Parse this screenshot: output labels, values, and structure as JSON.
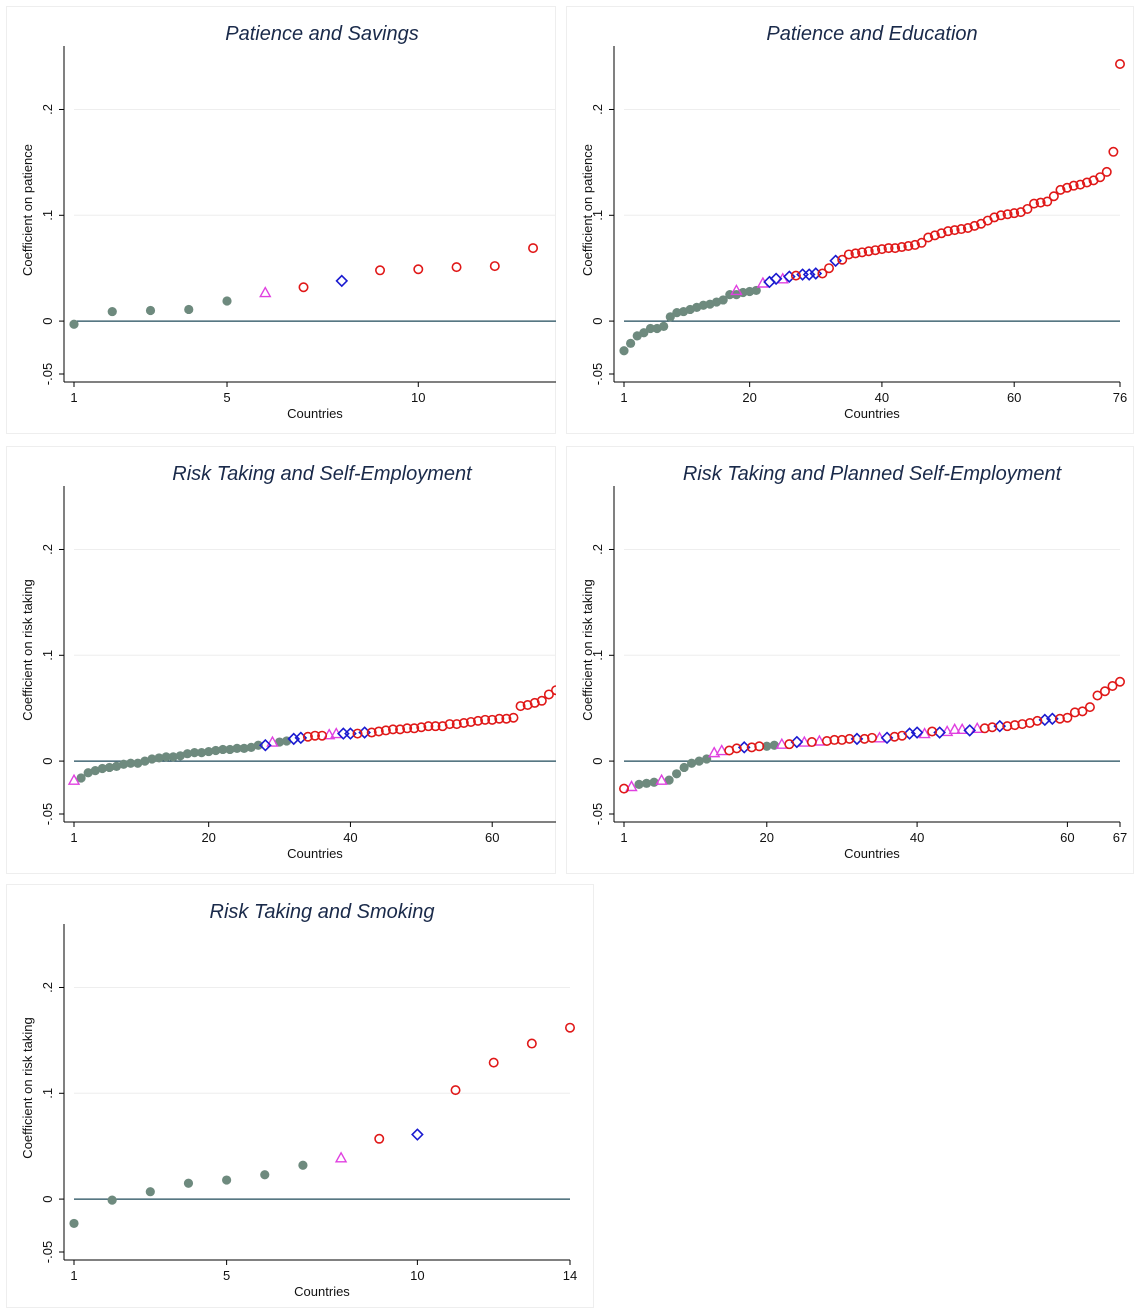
{
  "colors": {
    "gray": "#6e8a7e",
    "magenta": "#e040e0",
    "blue": "#1a1ad0",
    "red": "#e01818",
    "zero_line": "#1f4a5a",
    "gridline": "#eeeeee",
    "frame": "#eeeeee"
  },
  "chart_data": [
    {
      "id": "savings",
      "type": "scatter",
      "title": "Patience and Savings",
      "xlabel": "Countries",
      "ylabel": "Coefficient on patience",
      "ylim": [
        -0.05,
        0.26
      ],
      "yticks": [
        -0.05,
        0,
        0.1,
        0.2
      ],
      "ytick_labels": [
        "-.05",
        "0",
        ".1",
        ".2"
      ],
      "xlim": [
        1,
        13.6
      ],
      "xticks": [
        1,
        5,
        10
      ],
      "xtick_labels": [
        "1",
        "5",
        "10"
      ],
      "series": [
        {
          "marker": "gray-dot",
          "x": [
            1,
            2,
            3,
            4,
            5
          ],
          "y": [
            -0.003,
            0.009,
            0.01,
            0.011,
            0.019
          ]
        },
        {
          "marker": "magenta-triangle",
          "x": [
            6
          ],
          "y": [
            0.027
          ]
        },
        {
          "marker": "red-circle",
          "x": [
            7,
            9,
            10,
            11,
            12,
            13
          ],
          "y": [
            0.032,
            0.048,
            0.049,
            0.051,
            0.052,
            0.069
          ]
        },
        {
          "marker": "blue-diamond",
          "x": [
            8
          ],
          "y": [
            0.038
          ]
        }
      ]
    },
    {
      "id": "education",
      "type": "scatter",
      "title": "Patience and Education",
      "xlabel": "Countries",
      "ylabel": "Coefficient on patience",
      "ylim": [
        -0.05,
        0.26
      ],
      "yticks": [
        -0.05,
        0,
        0.1,
        0.2
      ],
      "ytick_labels": [
        "-.05",
        "0",
        ".1",
        ".2"
      ],
      "xlim": [
        1,
        76
      ],
      "xticks": [
        1,
        20,
        40,
        60,
        76
      ],
      "xtick_labels": [
        "1",
        "20",
        "40",
        "60",
        "76"
      ],
      "series": [
        {
          "marker": "gray-dot",
          "x": [
            1,
            2,
            3,
            4,
            5,
            6,
            7,
            8,
            9,
            10,
            11,
            12,
            13,
            14,
            15,
            16,
            17,
            18,
            19,
            20,
            21
          ],
          "y": [
            -0.028,
            -0.021,
            -0.014,
            -0.011,
            -0.007,
            -0.007,
            -0.005,
            0.004,
            0.008,
            0.009,
            0.011,
            0.013,
            0.015,
            0.016,
            0.018,
            0.02,
            0.025,
            0.025,
            0.027,
            0.028,
            0.029
          ]
        },
        {
          "marker": "magenta-triangle",
          "x": [
            18,
            22,
            25
          ],
          "y": [
            0.029,
            0.036,
            0.04
          ]
        },
        {
          "marker": "blue-diamond",
          "x": [
            23,
            24,
            26,
            28,
            29,
            30,
            33
          ],
          "y": [
            0.037,
            0.04,
            0.042,
            0.044,
            0.044,
            0.045,
            0.057
          ]
        },
        {
          "marker": "red-circle",
          "x": [
            27,
            31,
            32,
            34,
            35,
            36,
            37,
            38,
            39,
            40,
            41,
            42,
            43,
            44,
            45,
            46,
            47,
            48,
            49,
            50,
            51,
            52,
            53,
            54,
            55,
            56,
            57,
            58,
            59,
            60,
            61,
            62,
            63,
            64,
            65,
            66,
            67,
            68,
            69,
            70,
            71,
            72,
            73,
            74,
            75,
            76
          ],
          "y": [
            0.043,
            0.045,
            0.05,
            0.058,
            0.063,
            0.064,
            0.065,
            0.066,
            0.067,
            0.068,
            0.069,
            0.069,
            0.07,
            0.071,
            0.072,
            0.074,
            0.079,
            0.081,
            0.083,
            0.085,
            0.086,
            0.087,
            0.088,
            0.09,
            0.092,
            0.095,
            0.098,
            0.1,
            0.101,
            0.102,
            0.103,
            0.106,
            0.111,
            0.112,
            0.113,
            0.118,
            0.124,
            0.126,
            0.128,
            0.129,
            0.131,
            0.133,
            0.136,
            0.141,
            0.16,
            0.243
          ]
        }
      ]
    },
    {
      "id": "self_employment",
      "type": "scatter",
      "title": "Risk Taking and Self-Employment",
      "xlabel": "Countries",
      "ylabel": "Coefficient on risk taking",
      "ylim": [
        -0.05,
        0.26
      ],
      "yticks": [
        -0.05,
        0,
        0.1,
        0.2
      ],
      "ytick_labels": [
        "-.05",
        "0",
        ".1",
        ".2"
      ],
      "xlim": [
        1,
        69
      ],
      "xticks": [
        1,
        20,
        40,
        60
      ],
      "xtick_labels": [
        "1",
        "20",
        "40",
        "60"
      ],
      "series": [
        {
          "marker": "gray-dot",
          "x": [
            2,
            3,
            4,
            5,
            6,
            7,
            8,
            9,
            10,
            11,
            12,
            13,
            14,
            15,
            16,
            17,
            18,
            19,
            20,
            21,
            22,
            23,
            24,
            25,
            26,
            27,
            30,
            31
          ],
          "y": [
            -0.016,
            -0.011,
            -0.009,
            -0.007,
            -0.006,
            -0.005,
            -0.003,
            -0.002,
            -0.002,
            0.0,
            0.002,
            0.003,
            0.004,
            0.004,
            0.005,
            0.007,
            0.008,
            0.008,
            0.009,
            0.01,
            0.011,
            0.011,
            0.012,
            0.012,
            0.013,
            0.015,
            0.018,
            0.019
          ]
        },
        {
          "marker": "magenta-triangle",
          "x": [
            1,
            29,
            37,
            38
          ],
          "y": [
            -0.018,
            0.018,
            0.025,
            0.026
          ]
        },
        {
          "marker": "blue-diamond",
          "x": [
            28,
            32,
            33,
            39,
            40,
            42
          ],
          "y": [
            0.015,
            0.021,
            0.022,
            0.026,
            0.026,
            0.027
          ]
        },
        {
          "marker": "red-circle",
          "x": [
            34,
            35,
            36,
            41,
            43,
            44,
            45,
            46,
            47,
            48,
            49,
            50,
            51,
            52,
            53,
            54,
            55,
            56,
            57,
            58,
            59,
            60,
            61,
            62,
            63,
            64,
            65,
            66,
            67,
            68,
            69
          ],
          "y": [
            0.023,
            0.024,
            0.024,
            0.026,
            0.027,
            0.028,
            0.029,
            0.03,
            0.03,
            0.031,
            0.031,
            0.032,
            0.033,
            0.033,
            0.033,
            0.035,
            0.035,
            0.036,
            0.037,
            0.038,
            0.039,
            0.039,
            0.04,
            0.04,
            0.041,
            0.052,
            0.053,
            0.055,
            0.057,
            0.063,
            0.067
          ]
        }
      ]
    },
    {
      "id": "planned_self_employment",
      "type": "scatter",
      "title": "Risk Taking and Planned Self-Employment",
      "xlabel": "Countries",
      "ylabel": "Coefficient on risk taking",
      "ylim": [
        -0.05,
        0.26
      ],
      "yticks": [
        -0.05,
        0,
        0.1,
        0.2
      ],
      "ytick_labels": [
        "-.05",
        "0",
        ".1",
        ".2"
      ],
      "xlim": [
        1,
        67
      ],
      "xticks": [
        1,
        20,
        40,
        60,
        67
      ],
      "xtick_labels": [
        "1",
        "20",
        "40",
        "60",
        "67"
      ],
      "series": [
        {
          "marker": "gray-dot",
          "x": [
            3,
            4,
            5,
            7,
            8,
            9,
            10,
            11,
            12,
            20,
            21
          ],
          "y": [
            -0.022,
            -0.021,
            -0.02,
            -0.018,
            -0.012,
            -0.006,
            -0.002,
            0.0,
            0.002,
            0.014,
            0.015
          ]
        },
        {
          "marker": "magenta-triangle",
          "x": [
            2,
            6,
            13,
            14,
            22,
            25,
            27,
            35,
            41,
            44,
            45,
            46,
            48
          ],
          "y": [
            -0.024,
            -0.018,
            0.008,
            0.01,
            0.016,
            0.018,
            0.019,
            0.022,
            0.026,
            0.028,
            0.03,
            0.03,
            0.031
          ]
        },
        {
          "marker": "blue-diamond",
          "x": [
            17,
            24,
            32,
            36,
            39,
            40,
            43,
            47,
            51,
            57,
            58
          ],
          "y": [
            0.013,
            0.018,
            0.021,
            0.022,
            0.026,
            0.027,
            0.027,
            0.029,
            0.033,
            0.039,
            0.04
          ]
        },
        {
          "marker": "red-circle",
          "x": [
            1,
            15,
            16,
            18,
            19,
            23,
            26,
            28,
            29,
            30,
            31,
            33,
            34,
            37,
            38,
            42,
            49,
            50,
            52,
            53,
            54,
            55,
            56,
            59,
            60,
            61,
            62,
            63,
            64,
            65,
            66,
            67
          ],
          "y": [
            -0.026,
            0.01,
            0.012,
            0.013,
            0.014,
            0.016,
            0.018,
            0.019,
            0.02,
            0.02,
            0.021,
            0.021,
            0.022,
            0.023,
            0.024,
            0.028,
            0.031,
            0.032,
            0.033,
            0.034,
            0.035,
            0.036,
            0.038,
            0.04,
            0.041,
            0.046,
            0.047,
            0.051,
            0.062,
            0.066,
            0.071,
            0.075
          ]
        }
      ]
    },
    {
      "id": "smoking",
      "type": "scatter",
      "title": "Risk Taking and Smoking",
      "xlabel": "Countries",
      "ylabel": "Coefficient on risk taking",
      "ylim": [
        -0.05,
        0.26
      ],
      "yticks": [
        -0.05,
        0,
        0.1,
        0.2
      ],
      "ytick_labels": [
        "-.05",
        "0",
        ".1",
        ".2"
      ],
      "xlim": [
        1,
        14
      ],
      "xticks": [
        1,
        5,
        10,
        14
      ],
      "xtick_labels": [
        "1",
        "5",
        "10",
        "14"
      ],
      "series": [
        {
          "marker": "gray-dot",
          "x": [
            1,
            2,
            3,
            4,
            5,
            6,
            7
          ],
          "y": [
            -0.023,
            -0.001,
            0.007,
            0.015,
            0.018,
            0.023,
            0.032
          ]
        },
        {
          "marker": "magenta-triangle",
          "x": [
            8
          ],
          "y": [
            0.039
          ]
        },
        {
          "marker": "red-circle",
          "x": [
            9,
            11,
            12,
            13,
            14
          ],
          "y": [
            0.057,
            0.103,
            0.129,
            0.147,
            0.162
          ]
        },
        {
          "marker": "blue-diamond",
          "x": [
            10
          ],
          "y": [
            0.061
          ]
        }
      ]
    }
  ]
}
